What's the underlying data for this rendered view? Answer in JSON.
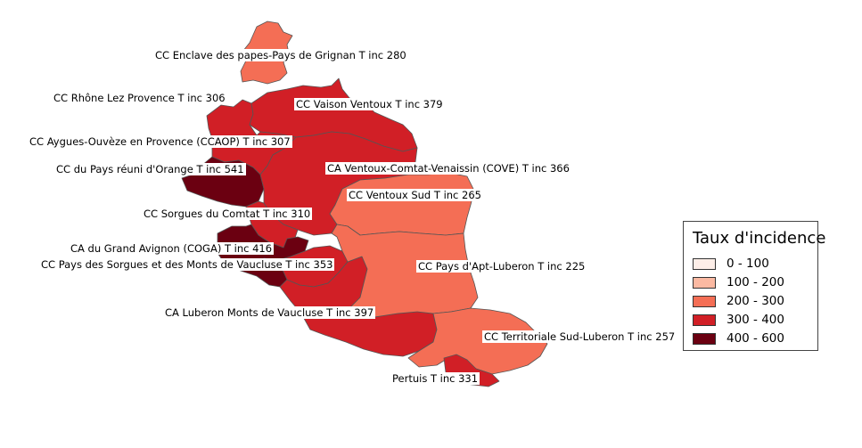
{
  "colors": {
    "c0_100": "#fdeee8",
    "c100_200": "#fbb9a2",
    "c200_300": "#f46e55",
    "c300_400": "#d11f26",
    "c400_600": "#6b0011"
  },
  "labels": {
    "grignan": "CC Enclave des papes-Pays de Grignan T inc 280",
    "rhone": "CC Rhône Lez Provence T inc 306",
    "vaison": "CC Vaison Ventoux T inc 379",
    "ayguesouveze": "CC Aygues-Ouvèze en Provence (CCAOP) T inc 307",
    "orange": "CC du Pays réuni d'Orange T inc 541",
    "cove": "CA Ventoux-Comtat-Venaissin (COVE) T inc 366",
    "ventouxsud": "CC Ventoux Sud T inc 265",
    "sorgues": "CC Sorgues du Comtat T inc 310",
    "coga": "CA du Grand Avignon (COGA) T inc 416",
    "pays_sorgues": "CC Pays des Sorgues et des Monts de Vaucluse T inc 353",
    "apt": "CC Pays d'Apt-Luberon T inc 225",
    "luberon_monts": "CA Luberon Monts de Vaucluse T inc 397",
    "sud_luberon": "CC Territoriale Sud-Luberon T inc 257",
    "pertuis": "Pertuis T inc 331"
  },
  "legend": {
    "title": "Taux d'incidence",
    "items": [
      {
        "label": "0 - 100",
        "color": "#fdeee8"
      },
      {
        "label": "100 - 200",
        "color": "#fbb9a2"
      },
      {
        "label": "200 - 300",
        "color": "#f46e55"
      },
      {
        "label": "300 - 400",
        "color": "#d11f26"
      },
      {
        "label": "400 - 600",
        "color": "#6b0011"
      }
    ]
  }
}
